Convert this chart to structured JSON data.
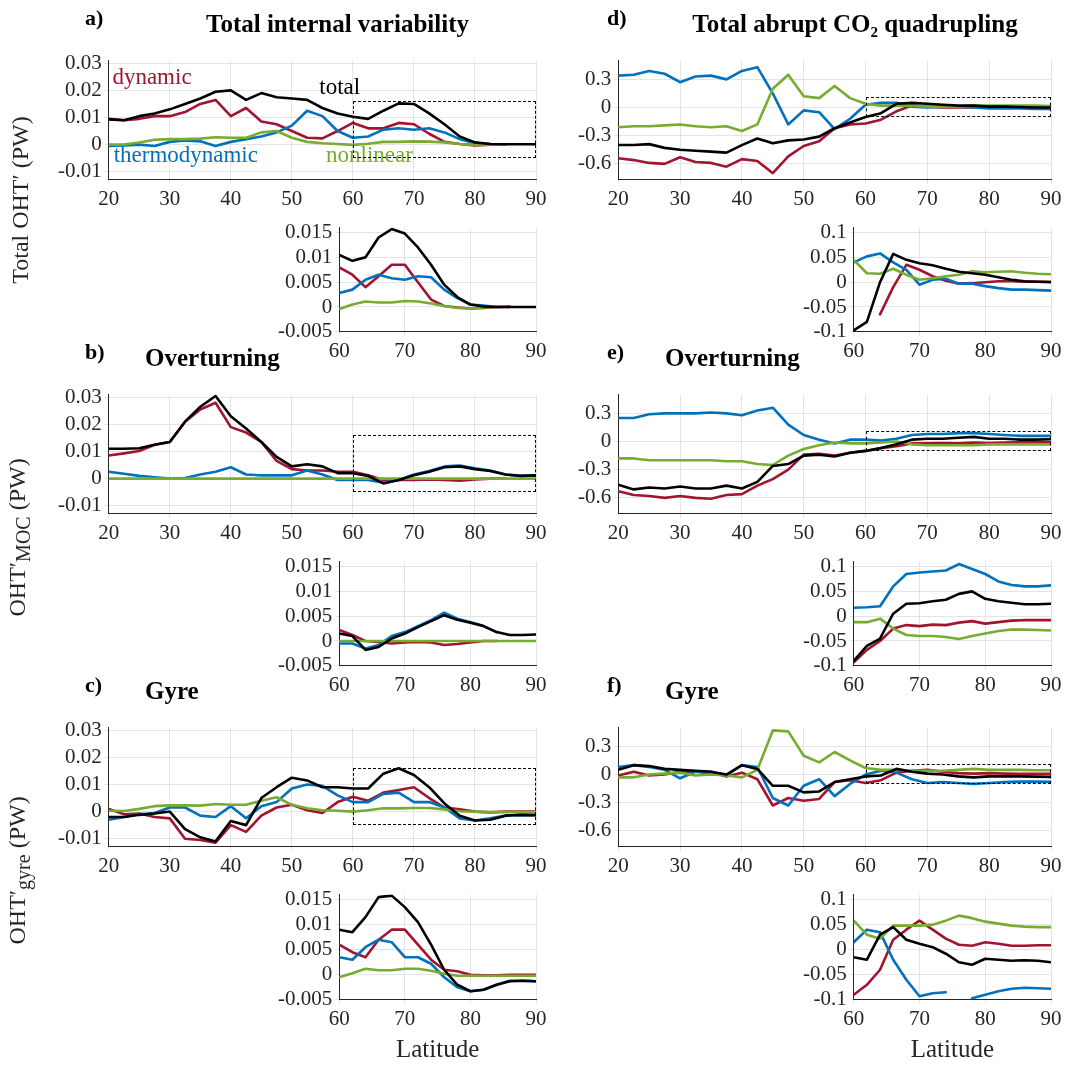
{
  "chart_data": [
    {
      "type": "line",
      "title": "Total internal variability",
      "annotations": [
        "a)"
      ],
      "ylabel": "Total OHT′ (PW)",
      "xlim": [
        20,
        90
      ],
      "xticks": [
        20,
        30,
        40,
        50,
        60,
        70,
        80,
        90
      ],
      "ylim": [
        -0.013,
        0.031
      ],
      "yticks": [
        -0.01,
        0,
        0.01,
        0.02,
        0.03
      ],
      "grid": true,
      "marker": "none",
      "x": [
        20,
        22.5,
        25,
        27.5,
        30,
        32.5,
        35,
        37.5,
        40,
        42.5,
        45,
        47.5,
        50,
        52.5,
        55,
        57.5,
        60,
        62.5,
        65,
        67.5,
        70,
        72.5,
        75,
        77.5,
        80,
        82.5,
        85,
        87.5,
        90
      ],
      "series": [
        {
          "name": "dynamic",
          "color": "#a2142f",
          "values": [
            0.0095,
            0.009,
            0.0095,
            0.0105,
            0.0105,
            0.012,
            0.015,
            0.0165,
            0.0105,
            0.0135,
            0.0085,
            0.0075,
            0.005,
            0.0025,
            0.0023,
            0.005,
            0.008,
            0.006,
            0.006,
            0.008,
            0.0075,
            0.004,
            0.001,
            0.0002,
            -0.0003,
            0,
            0,
            null,
            null
          ]
        },
        {
          "name": "thermodynamic",
          "color": "#0072bd",
          "values": [
            -0.0005,
            -0.0003,
            0,
            -0.0005,
            0.001,
            0.0015,
            0.0012,
            -0.0005,
            0.001,
            0.002,
            0.003,
            0.0045,
            0.007,
            0.0125,
            0.0105,
            0.005,
            0.0025,
            0.003,
            0.0055,
            0.006,
            0.0055,
            0.006,
            0.0045,
            0.002,
            0.0005,
            0.0002,
            null,
            null,
            null
          ]
        },
        {
          "name": "nonlinear",
          "color": "#77ac30",
          "values": [
            0,
            0,
            0.0008,
            0.0018,
            0.002,
            0.002,
            0.0022,
            0.0027,
            0.0025,
            0.0025,
            0.0045,
            0.005,
            0.0025,
            0.001,
            0.0005,
            0.0002,
            -0.0001,
            0.0003,
            0.001,
            0.001,
            0.0012,
            0.0011,
            0.0008,
            0.0002,
            -0.0001,
            0,
            0,
            null,
            null
          ]
        },
        {
          "name": "total",
          "color": "#000000",
          "values": [
            0.0093,
            0.009,
            0.0105,
            0.0115,
            0.013,
            0.015,
            0.017,
            0.0195,
            0.02,
            0.0165,
            0.019,
            0.0175,
            0.017,
            0.0165,
            0.0135,
            0.0115,
            0.0103,
            0.0095,
            0.0125,
            0.0152,
            0.015,
            0.0115,
            0.0075,
            0.003,
            0.0008,
            0.0002,
            0.0001,
            0.0001,
            0.0001
          ]
        }
      ]
    },
    {
      "type": "line",
      "xlim": [
        60,
        90
      ],
      "xticks": [
        60,
        70,
        80,
        90
      ],
      "ylim": [
        -0.005,
        0.016
      ],
      "yticks": [
        -0.005,
        0,
        0.005,
        0.01,
        0.015
      ],
      "grid": true,
      "marker": "none",
      "x": [
        60,
        62,
        64,
        66,
        68,
        70,
        72,
        74,
        76,
        78,
        80,
        82,
        84,
        86,
        88,
        90
      ],
      "series": [
        {
          "color": "#a2142f",
          "values": [
            0.008,
            0.0065,
            0.004,
            0.0062,
            0.0085,
            0.0085,
            0.005,
            0.0015,
            0.0002,
            -0.0001,
            -0.0003,
            -0.0002,
            0,
            0,
            null,
            null
          ]
        },
        {
          "color": "#0072bd",
          "values": [
            0.0028,
            0.0035,
            0.0055,
            0.0065,
            0.0058,
            0.0055,
            0.0062,
            0.006,
            0.0035,
            0.0018,
            0.0005,
            0.0003,
            0,
            0.0001,
            null,
            null
          ]
        },
        {
          "color": "#77ac30",
          "values": [
            -0.0004,
            0.0005,
            0.0011,
            0.0009,
            0.0009,
            0.0012,
            0.0011,
            0.0007,
            0.0002,
            -0.0002,
            -0.0003,
            -0.0001,
            0,
            null,
            null,
            null
          ]
        },
        {
          "color": "#000000",
          "values": [
            0.0105,
            0.0093,
            0.01,
            0.014,
            0.0157,
            0.0148,
            0.012,
            0.0085,
            0.0045,
            0.002,
            0.0005,
            0.0001,
            0,
            0,
            0,
            0
          ]
        }
      ]
    },
    {
      "type": "line",
      "title": "Overturning",
      "annotations": [
        "b)"
      ],
      "ylabel": "OHT′$_{MOC}$ (PW)",
      "xlim": [
        20,
        90
      ],
      "xticks": [
        20,
        30,
        40,
        50,
        60,
        70,
        80,
        90
      ],
      "ylim": [
        -0.013,
        0.031
      ],
      "yticks": [
        -0.01,
        0,
        0.01,
        0.02,
        0.03
      ],
      "grid": true,
      "marker": "none",
      "x": [
        20,
        22.5,
        25,
        27.5,
        30,
        32.5,
        35,
        37.5,
        40,
        42.5,
        45,
        47.5,
        50,
        52.5,
        55,
        57.5,
        60,
        62.5,
        65,
        67.5,
        70,
        72.5,
        75,
        77.5,
        80,
        82.5,
        85,
        87.5,
        90
      ],
      "series": [
        {
          "color": "#a2142f",
          "values": [
            0.0085,
            0.0093,
            0.0102,
            0.0125,
            0.0135,
            0.021,
            0.0255,
            0.028,
            0.019,
            0.017,
            0.0135,
            0.0065,
            0.0035,
            0.003,
            0.003,
            0.0025,
            0.0025,
            0.0012,
            -0.0005,
            -0.0005,
            -0.0005,
            -0.0003,
            -0.0005,
            -0.0008,
            -0.0003,
            0,
            0,
            null,
            null
          ]
        },
        {
          "color": "#0072bd",
          "values": [
            0.0025,
            0.0018,
            0.001,
            0.0005,
            0,
            0.0002,
            0.0015,
            0.0025,
            0.0042,
            0.0015,
            0.0012,
            0.0012,
            0.0012,
            0.003,
            0.0015,
            -0.0005,
            -0.0005,
            -0.0005,
            -0.0015,
            -0.0005,
            0.0015,
            0.0028,
            0.0045,
            0.0048,
            0.0038,
            0.003,
            0.0015,
            0.001,
            0.0012
          ]
        },
        {
          "color": "#77ac30",
          "values": [
            0,
            0,
            0,
            0,
            0,
            0,
            0,
            0,
            0,
            0,
            0,
            0,
            0,
            0,
            0,
            0,
            0,
            0,
            0,
            0,
            0,
            0,
            0,
            0,
            0,
            0,
            0,
            0,
            0
          ]
        },
        {
          "color": "#000000",
          "values": [
            0.011,
            0.011,
            0.0112,
            0.0125,
            0.0135,
            0.021,
            0.0265,
            0.0305,
            0.023,
            0.0185,
            0.0135,
            0.008,
            0.0045,
            0.0053,
            0.0045,
            0.002,
            0.002,
            0.001,
            -0.0018,
            -0.0005,
            0.0012,
            0.0025,
            0.0042,
            0.0045,
            0.0035,
            0.0028,
            0.0015,
            0.001,
            0.0012
          ]
        }
      ]
    },
    {
      "type": "line",
      "xlim": [
        60,
        90
      ],
      "xticks": [
        60,
        70,
        80,
        90
      ],
      "ylim": [
        -0.005,
        0.016
      ],
      "yticks": [
        -0.005,
        0,
        0.005,
        0.01,
        0.015
      ],
      "grid": true,
      "marker": "none",
      "x": [
        60,
        62,
        64,
        66,
        68,
        70,
        72,
        74,
        76,
        78,
        80,
        82,
        84,
        86,
        88,
        90
      ],
      "series": [
        {
          "color": "#a2142f",
          "values": [
            0.0022,
            0.0012,
            0,
            -0.0002,
            -0.0005,
            -0.0003,
            -0.0002,
            -0.0003,
            -0.0008,
            -0.0006,
            -0.0003,
            0,
            0,
            null,
            null,
            null
          ]
        },
        {
          "color": "#0072bd",
          "values": [
            -0.0005,
            -0.0005,
            -0.0015,
            -0.0008,
            0.001,
            0.0018,
            0.003,
            0.0042,
            0.0057,
            0.0045,
            0.0038,
            0.003,
            0.0018,
            null,
            null,
            null
          ]
        },
        {
          "color": "#77ac30",
          "values": [
            0,
            0,
            0,
            0,
            0,
            0,
            0,
            0,
            0,
            0,
            0,
            0,
            0,
            0,
            0,
            0
          ]
        },
        {
          "color": "#000000",
          "values": [
            0.0015,
            0.001,
            -0.0018,
            -0.0012,
            0.0005,
            0.0015,
            0.0028,
            0.004,
            0.0052,
            0.0043,
            0.0037,
            0.003,
            0.0018,
            0.0012,
            0.0012,
            0.0013
          ]
        }
      ]
    },
    {
      "type": "line",
      "title": "Gyre",
      "annotations": [
        "c)"
      ],
      "ylabel": "OHT′$_{gyre}$ (PW)",
      "xlim": [
        20,
        90
      ],
      "xticks": [
        20,
        30,
        40,
        50,
        60,
        70,
        80,
        90
      ],
      "ylim": [
        -0.013,
        0.031
      ],
      "yticks": [
        -0.01,
        0,
        0.01,
        0.02,
        0.03
      ],
      "grid": true,
      "marker": "none",
      "x": [
        20,
        22.5,
        25,
        27.5,
        30,
        32.5,
        35,
        37.5,
        40,
        42.5,
        45,
        47.5,
        50,
        52.5,
        55,
        57.5,
        60,
        62.5,
        65,
        67.5,
        70,
        72.5,
        75,
        77.5,
        80,
        82.5,
        85,
        87.5,
        90
      ],
      "series": [
        {
          "color": "#a2142f",
          "values": [
            0.001,
            -0.001,
            -0.0007,
            -0.002,
            -0.0025,
            -0.01,
            -0.0105,
            -0.0115,
            -0.005,
            -0.0075,
            -0.0015,
            0.0015,
            0.0025,
            0.0005,
            -0.0005,
            0.0035,
            0.0055,
            0.004,
            0.007,
            0.008,
            0.009,
            0.005,
            0.0015,
            0.0008,
            0,
            -0.0003,
            0,
            0,
            0
          ]
        },
        {
          "color": "#0072bd",
          "values": [
            -0.003,
            -0.002,
            -0.001,
            -0.0005,
            0.0015,
            0.0015,
            -0.0015,
            -0.002,
            0.002,
            -0.0025,
            0.002,
            0.0035,
            0.0085,
            0.01,
            0.0095,
            0.006,
            0.0035,
            0.0035,
            0.0065,
            0.007,
            0.0035,
            0.0035,
            0.0015,
            -0.0025,
            -0.0033,
            -0.0025,
            -0.0015,
            -0.0012,
            -0.0013
          ]
        },
        {
          "color": "#77ac30",
          "values": [
            0.0003,
            0.0002,
            0.001,
            0.002,
            0.0023,
            0.0023,
            0.0022,
            0.0028,
            0.0025,
            0.0025,
            0.004,
            0.0053,
            0.0025,
            0.0012,
            0.0005,
            0.0003,
            0,
            0.0005,
            0.0012,
            0.0012,
            0.0013,
            0.0013,
            0.0008,
            0.0001,
            0,
            -0.0002,
            -0.0002,
            -0.0002,
            -0.0002
          ]
        },
        {
          "color": "#000000",
          "values": [
            -0.002,
            -0.002,
            -0.0012,
            -0.0007,
            0,
            -0.0065,
            -0.0095,
            -0.011,
            -0.0035,
            -0.005,
            0.005,
            0.009,
            0.0125,
            0.0115,
            0.009,
            0.009,
            0.0085,
            0.0085,
            0.014,
            0.016,
            0.0135,
            0.009,
            0.003,
            -0.0015,
            -0.0033,
            -0.003,
            -0.0015,
            -0.0012,
            -0.0013
          ]
        }
      ]
    },
    {
      "type": "line",
      "xlabel": "Latitude",
      "xlim": [
        60,
        90
      ],
      "xticks": [
        60,
        70,
        80,
        90
      ],
      "ylim": [
        -0.005,
        0.016
      ],
      "yticks": [
        -0.005,
        0,
        0.005,
        0.01,
        0.015
      ],
      "grid": true,
      "marker": "none",
      "x": [
        60,
        62,
        64,
        66,
        68,
        70,
        72,
        74,
        76,
        78,
        80,
        82,
        84,
        86,
        88,
        90
      ],
      "series": [
        {
          "color": "#a2142f",
          "values": [
            0.006,
            0.0045,
            0.0035,
            0.007,
            0.009,
            0.009,
            0.006,
            0.003,
            0.001,
            0.0007,
            0,
            -0.0001,
            -0.0001,
            0,
            0,
            0
          ]
        },
        {
          "color": "#0072bd",
          "values": [
            0.0035,
            0.003,
            0.0055,
            0.007,
            0.0065,
            0.0035,
            0.0035,
            0.0022,
            -0.0005,
            -0.0025,
            -0.0033,
            -0.003,
            -0.002,
            -0.0012,
            -0.0012,
            -0.0013
          ]
        },
        {
          "color": "#77ac30",
          "values": [
            -0.0005,
            0.0003,
            0.0012,
            0.0009,
            0.0009,
            0.0012,
            0.0012,
            0.0008,
            0.0002,
            -0.0002,
            -0.0002,
            -0.0002,
            -0.0002,
            -0.0002,
            -0.0002,
            -0.0002
          ]
        },
        {
          "color": "#000000",
          "values": [
            0.009,
            0.0085,
            0.0115,
            0.0155,
            0.0158,
            0.0135,
            0.0105,
            0.006,
            0.001,
            -0.002,
            -0.0033,
            -0.003,
            -0.002,
            -0.0013,
            -0.0012,
            -0.0013
          ]
        }
      ]
    },
    {
      "type": "line",
      "title": "Total abrupt CO₂ quadrupling",
      "annotations": [
        "d)"
      ],
      "xlim": [
        20,
        90
      ],
      "xticks": [
        20,
        30,
        40,
        50,
        60,
        70,
        80,
        90
      ],
      "ylim": [
        -0.77,
        0.5
      ],
      "yticks": [
        -0.6,
        -0.3,
        0,
        0.3
      ],
      "grid": true,
      "marker": "none",
      "x": [
        20,
        22.5,
        25,
        27.5,
        30,
        32.5,
        35,
        37.5,
        40,
        42.5,
        45,
        47.5,
        50,
        52.5,
        55,
        57.5,
        60,
        62.5,
        65,
        67.5,
        70,
        72.5,
        75,
        77.5,
        80,
        82.5,
        85,
        87.5,
        90
      ],
      "series": [
        {
          "color": "#a2142f",
          "values": [
            -0.54,
            -0.56,
            -0.59,
            -0.6,
            -0.53,
            -0.58,
            -0.59,
            -0.63,
            -0.55,
            -0.57,
            -0.7,
            -0.52,
            -0.41,
            -0.36,
            -0.22,
            -0.18,
            -0.17,
            -0.13,
            -0.04,
            0.02,
            0.01,
            0,
            0,
            0,
            null,
            null,
            null,
            null,
            null
          ]
        },
        {
          "color": "#0072bd",
          "values": [
            0.34,
            0.35,
            0.39,
            0.36,
            0.27,
            0.33,
            0.34,
            0.3,
            0.39,
            0.43,
            0.15,
            -0.18,
            -0.03,
            -0.05,
            -0.23,
            -0.12,
            0.03,
            0.05,
            0.05,
            0.01,
            0,
            0.01,
            0.01,
            0,
            -0.01,
            -0.01,
            -0.01,
            -0.015,
            -0.016
          ]
        },
        {
          "color": "#77ac30",
          "values": [
            -0.21,
            -0.2,
            -0.2,
            -0.19,
            -0.18,
            -0.2,
            -0.21,
            -0.2,
            -0.25,
            -0.18,
            0.2,
            0.35,
            0.12,
            0.1,
            0.23,
            0.1,
            0.04,
            0.02,
            0.02,
            0.02,
            0.01,
            0.01,
            0.01,
            0.02,
            0.02,
            0.02,
            0.02,
            0.02,
            0.015
          ]
        },
        {
          "color": "#000000",
          "values": [
            -0.4,
            -0.4,
            -0.39,
            -0.43,
            -0.45,
            -0.46,
            -0.47,
            -0.48,
            -0.4,
            -0.33,
            -0.38,
            -0.35,
            -0.34,
            -0.31,
            -0.22,
            -0.16,
            -0.1,
            -0.06,
            0.04,
            0.05,
            0.04,
            0.03,
            0.02,
            0.02,
            0.01,
            0.01,
            0.005,
            0,
            0
          ]
        }
      ]
    },
    {
      "type": "line",
      "xlim": [
        60,
        90
      ],
      "xticks": [
        60,
        70,
        80,
        90
      ],
      "ylim": [
        -0.1,
        0.11
      ],
      "yticks": [
        -0.1,
        -0.05,
        0,
        0.05,
        0.1
      ],
      "grid": true,
      "marker": "none",
      "x": [
        60,
        62,
        64,
        66,
        68,
        70,
        72,
        74,
        76,
        78,
        80,
        82,
        84,
        86,
        88,
        90
      ],
      "series": [
        {
          "color": "#a2142f",
          "values": [
            null,
            null,
            -0.065,
            -0.01,
            0.035,
            0.025,
            0.012,
            0.003,
            -0.003,
            -0.002,
            0,
            0.002,
            0.002,
            0.001,
            0.001,
            0.001
          ]
        },
        {
          "color": "#0072bd",
          "values": [
            0.04,
            0.052,
            0.058,
            0.04,
            0.025,
            -0.005,
            0.005,
            0.007,
            -0.003,
            -0.003,
            -0.008,
            -0.012,
            -0.015,
            -0.015,
            -0.016,
            -0.017
          ]
        },
        {
          "color": "#77ac30",
          "values": [
            0.045,
            0.018,
            0.017,
            0.027,
            0.015,
            0.005,
            0.008,
            0.012,
            0.015,
            0.022,
            0.02,
            0.021,
            0.022,
            0.019,
            0.017,
            0.016
          ]
        },
        {
          "color": "#000000",
          "values": [
            -0.097,
            -0.08,
            0,
            0.057,
            0.045,
            0.038,
            0.034,
            0.027,
            0.021,
            0.018,
            0.015,
            0.01,
            0.005,
            0.002,
            0.001,
            0
          ]
        }
      ]
    },
    {
      "type": "line",
      "title": "Overturning",
      "annotations": [
        "e)"
      ],
      "xlim": [
        20,
        90
      ],
      "xticks": [
        20,
        30,
        40,
        50,
        60,
        70,
        80,
        90
      ],
      "ylim": [
        -0.77,
        0.5
      ],
      "yticks": [
        -0.6,
        -0.3,
        0,
        0.3
      ],
      "grid": true,
      "marker": "none",
      "x": [
        20,
        22.5,
        25,
        27.5,
        30,
        32.5,
        35,
        37.5,
        40,
        42.5,
        45,
        47.5,
        50,
        52.5,
        55,
        57.5,
        60,
        62.5,
        65,
        67.5,
        70,
        72.5,
        75,
        77.5,
        80,
        82.5,
        85,
        87.5,
        90
      ],
      "series": [
        {
          "color": "#a2142f",
          "values": [
            -0.53,
            -0.57,
            -0.58,
            -0.6,
            -0.58,
            -0.6,
            -0.61,
            -0.57,
            -0.56,
            -0.47,
            -0.4,
            -0.3,
            -0.14,
            -0.13,
            -0.15,
            -0.12,
            -0.1,
            -0.07,
            -0.05,
            -0.02,
            -0.02,
            -0.015,
            -0.02,
            -0.01,
            -0.015,
            -0.01,
            -0.008,
            -0.008,
            -0.008
          ]
        },
        {
          "color": "#0072bd",
          "values": [
            0.25,
            0.25,
            0.29,
            0.3,
            0.3,
            0.3,
            0.31,
            0.3,
            0.28,
            0.33,
            0.36,
            0.18,
            0.07,
            0.02,
            -0.02,
            0.02,
            0.02,
            0.01,
            0.03,
            0.07,
            0.08,
            0.08,
            0.09,
            0.09,
            0.08,
            0.07,
            0.06,
            0.06,
            0.06
          ]
        },
        {
          "color": "#77ac30",
          "values": [
            -0.18,
            -0.18,
            -0.2,
            -0.2,
            -0.2,
            -0.2,
            -0.2,
            -0.21,
            -0.21,
            -0.24,
            -0.25,
            -0.15,
            -0.08,
            -0.04,
            -0.01,
            -0.02,
            -0.02,
            -0.01,
            0,
            -0.03,
            -0.04,
            -0.04,
            -0.04,
            -0.04,
            -0.03,
            -0.03,
            -0.03,
            -0.03,
            -0.03
          ]
        },
        {
          "color": "#000000",
          "values": [
            -0.46,
            -0.51,
            -0.49,
            -0.5,
            -0.48,
            -0.5,
            -0.5,
            -0.47,
            -0.5,
            -0.43,
            -0.26,
            -0.24,
            -0.15,
            -0.14,
            -0.16,
            -0.12,
            -0.1,
            -0.07,
            -0.03,
            0.02,
            0.03,
            0.03,
            0.04,
            0.05,
            0.03,
            0.03,
            0.02,
            0.02,
            0.025
          ]
        }
      ]
    },
    {
      "type": "line",
      "xlim": [
        60,
        90
      ],
      "xticks": [
        60,
        70,
        80,
        90
      ],
      "ylim": [
        -0.1,
        0.11
      ],
      "yticks": [
        -0.1,
        -0.05,
        0,
        0.05,
        0.1
      ],
      "grid": true,
      "marker": "none",
      "x": [
        60,
        62,
        64,
        66,
        68,
        70,
        72,
        74,
        76,
        78,
        80,
        82,
        84,
        86,
        88,
        90
      ],
      "series": [
        {
          "color": "#a2142f",
          "values": [
            -0.093,
            -0.068,
            -0.05,
            -0.025,
            -0.018,
            -0.02,
            -0.017,
            -0.018,
            -0.013,
            -0.01,
            -0.015,
            -0.012,
            -0.009,
            -0.008,
            -0.008,
            -0.008
          ]
        },
        {
          "color": "#0072bd",
          "values": [
            0.017,
            0.018,
            0.02,
            0.06,
            0.085,
            0.088,
            0.09,
            0.092,
            0.105,
            0.095,
            0.085,
            0.07,
            0.063,
            0.06,
            0.06,
            0.062
          ]
        },
        {
          "color": "#77ac30",
          "values": [
            -0.012,
            -0.012,
            -0.005,
            -0.025,
            -0.038,
            -0.04,
            -0.04,
            -0.042,
            -0.046,
            -0.04,
            -0.035,
            -0.03,
            -0.027,
            -0.027,
            -0.028,
            -0.029
          ]
        },
        {
          "color": "#000000",
          "values": [
            -0.09,
            -0.06,
            -0.045,
            0.005,
            0.025,
            0.026,
            0.03,
            0.033,
            0.045,
            0.05,
            0.035,
            0.03,
            0.027,
            0.024,
            0.024,
            0.025
          ]
        }
      ]
    },
    {
      "type": "line",
      "title": "Gyre",
      "annotations": [
        "f)"
      ],
      "xlim": [
        20,
        90
      ],
      "xticks": [
        20,
        30,
        40,
        50,
        60,
        70,
        80,
        90
      ],
      "ylim": [
        -0.77,
        0.5
      ],
      "yticks": [
        -0.6,
        -0.3,
        0,
        0.3
      ],
      "grid": true,
      "marker": "none",
      "x": [
        20,
        22.5,
        25,
        27.5,
        30,
        32.5,
        35,
        37.5,
        40,
        42.5,
        45,
        47.5,
        50,
        52.5,
        55,
        57.5,
        60,
        62.5,
        65,
        67.5,
        70,
        72.5,
        75,
        77.5,
        80,
        82.5,
        85,
        87.5,
        90
      ],
      "series": [
        {
          "color": "#a2142f",
          "values": [
            -0.01,
            0.03,
            -0.01,
            0,
            0.03,
            0.03,
            0.03,
            -0.02,
            0.02,
            -0.05,
            -0.33,
            -0.25,
            -0.28,
            -0.26,
            -0.08,
            -0.06,
            -0.09,
            -0.06,
            0.02,
            0.04,
            0.05,
            0.03,
            0.015,
            0.01,
            0.015,
            0.01,
            0.008,
            0.009,
            0.009
          ]
        },
        {
          "color": "#0072bd",
          "values": [
            0.08,
            0.1,
            0.08,
            0.05,
            -0.04,
            0.03,
            0.01,
            -0.01,
            0.1,
            0.08,
            -0.25,
            -0.33,
            -0.12,
            -0.05,
            -0.23,
            -0.1,
            0,
            0.04,
            0.02,
            -0.05,
            -0.09,
            -0.08,
            -0.09,
            -0.1,
            -0.09,
            -0.08,
            -0.075,
            -0.076,
            -0.078
          ]
        },
        {
          "color": "#77ac30",
          "values": [
            -0.03,
            -0.03,
            0,
            0.01,
            0.02,
            -0.01,
            0,
            -0.01,
            -0.03,
            0.05,
            0.47,
            0.46,
            0.2,
            0.13,
            0.24,
            0.15,
            0.07,
            0.05,
            0.05,
            0.04,
            0.04,
            0.04,
            0.05,
            0.06,
            0.05,
            0.05,
            0.05,
            0.045,
            0.045
          ]
        },
        {
          "color": "#000000",
          "values": [
            0.05,
            0.1,
            0.09,
            0.06,
            0.05,
            0.04,
            0.03,
            0,
            0.1,
            0.06,
            -0.12,
            -0.12,
            -0.19,
            -0.18,
            -0.08,
            -0.05,
            -0.02,
            -0.01,
            0.06,
            0.03,
            0.01,
            0,
            -0.02,
            -0.03,
            -0.02,
            -0.02,
            -0.02,
            -0.022,
            -0.025
          ]
        }
      ]
    },
    {
      "type": "line",
      "xlabel": "Latitude",
      "xlim": [
        60,
        90
      ],
      "xticks": [
        60,
        70,
        80,
        90
      ],
      "ylim": [
        -0.1,
        0.11
      ],
      "yticks": [
        -0.1,
        -0.05,
        0,
        0.05,
        0.1
      ],
      "grid": true,
      "marker": "none",
      "x": [
        60,
        62,
        64,
        66,
        68,
        70,
        72,
        74,
        76,
        78,
        80,
        82,
        84,
        86,
        88,
        90
      ],
      "series": [
        {
          "color": "#a2142f",
          "values": [
            -0.09,
            -0.07,
            -0.04,
            0.02,
            0.04,
            0.058,
            0.04,
            0.022,
            0.01,
            0.008,
            0.015,
            0.012,
            0.008,
            0.008,
            0.009,
            0.009
          ]
        },
        {
          "color": "#0072bd",
          "values": [
            0.015,
            0.04,
            0.035,
            -0.02,
            -0.06,
            -0.093,
            -0.087,
            -0.085,
            null,
            -0.097,
            -0.09,
            -0.083,
            -0.078,
            -0.076,
            -0.077,
            -0.078
          ]
        },
        {
          "color": "#77ac30",
          "values": [
            0.058,
            0.03,
            0.022,
            0.048,
            0.048,
            0.048,
            0.05,
            0.058,
            0.068,
            0.063,
            0.056,
            0.052,
            0.048,
            0.046,
            0.045,
            0.045
          ]
        },
        {
          "color": "#000000",
          "values": [
            -0.015,
            -0.02,
            0.03,
            0.045,
            0.02,
            0.012,
            0.005,
            -0.008,
            -0.025,
            -0.03,
            -0.018,
            -0.02,
            -0.022,
            -0.021,
            -0.022,
            -0.025
          ]
        }
      ]
    }
  ]
}
